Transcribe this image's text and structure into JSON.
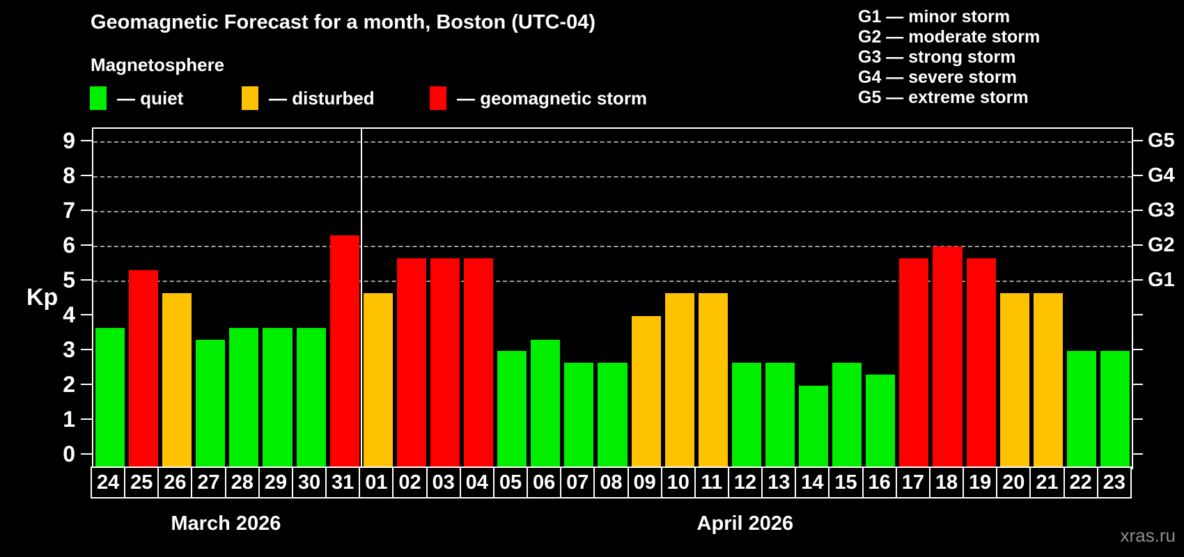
{
  "header": {
    "title": "Geomagnetic Forecast for a month, Boston (UTC-04)",
    "subtitle": "Magnetosphere",
    "legend": [
      {
        "status": "quiet",
        "label": "— quiet",
        "color": "#00EE00"
      },
      {
        "status": "disturbed",
        "label": "— disturbed",
        "color": "#FFC200"
      },
      {
        "status": "storm",
        "label": "— geomagnetic storm",
        "color": "#FF0000"
      }
    ],
    "g_legend": [
      {
        "code": "G1",
        "label": "minor storm"
      },
      {
        "code": "G2",
        "label": "moderate storm"
      },
      {
        "code": "G3",
        "label": "strong storm"
      },
      {
        "code": "G4",
        "label": "severe storm"
      },
      {
        "code": "G5",
        "label": "extreme storm"
      }
    ]
  },
  "chart_data": {
    "type": "bar",
    "title": "Geomagnetic Forecast for a month, Boston (UTC-04)",
    "ylabel": "Kp",
    "ylim": [
      0,
      9.4
    ],
    "y_ticks": [
      0,
      1,
      2,
      3,
      4,
      5,
      6,
      7,
      8,
      9
    ],
    "gridlines_at": [
      5,
      6,
      7,
      8,
      9
    ],
    "grid": "dashed horizontal lines at storm levels G1–G5 only",
    "legend_position": "top-left",
    "right_axis": [
      {
        "value": 5,
        "label": "G1"
      },
      {
        "value": 6,
        "label": "G2"
      },
      {
        "value": 7,
        "label": "G3"
      },
      {
        "value": 8,
        "label": "G4"
      },
      {
        "value": 9,
        "label": "G5"
      }
    ],
    "status_colors": {
      "quiet": "#00EE00",
      "disturbed": "#FFC200",
      "storm": "#FF0000"
    },
    "categories": [
      "24",
      "25",
      "26",
      "27",
      "28",
      "29",
      "30",
      "31",
      "01",
      "02",
      "03",
      "04",
      "05",
      "06",
      "07",
      "08",
      "09",
      "10",
      "11",
      "12",
      "13",
      "14",
      "15",
      "16",
      "17",
      "18",
      "19",
      "20",
      "21",
      "22",
      "23"
    ],
    "values": [
      3.67,
      5.33,
      4.67,
      3.33,
      3.67,
      3.67,
      3.67,
      6.33,
      4.67,
      5.67,
      5.67,
      5.67,
      3.0,
      3.33,
      2.67,
      2.67,
      4.0,
      4.67,
      4.67,
      2.67,
      2.67,
      2.0,
      2.67,
      2.33,
      5.67,
      6.0,
      5.67,
      4.67,
      4.67,
      3.0,
      3.0
    ],
    "statuses": [
      "quiet",
      "storm",
      "disturbed",
      "quiet",
      "quiet",
      "quiet",
      "quiet",
      "storm",
      "disturbed",
      "storm",
      "storm",
      "storm",
      "quiet",
      "quiet",
      "quiet",
      "quiet",
      "disturbed",
      "disturbed",
      "disturbed",
      "quiet",
      "quiet",
      "quiet",
      "quiet",
      "quiet",
      "storm",
      "storm",
      "storm",
      "disturbed",
      "disturbed",
      "quiet",
      "quiet"
    ],
    "month_sections": [
      {
        "label": "March 2026",
        "days": 8
      },
      {
        "label": "April 2026",
        "days": 23
      }
    ]
  },
  "footer": {
    "watermark": "xras.ru"
  }
}
